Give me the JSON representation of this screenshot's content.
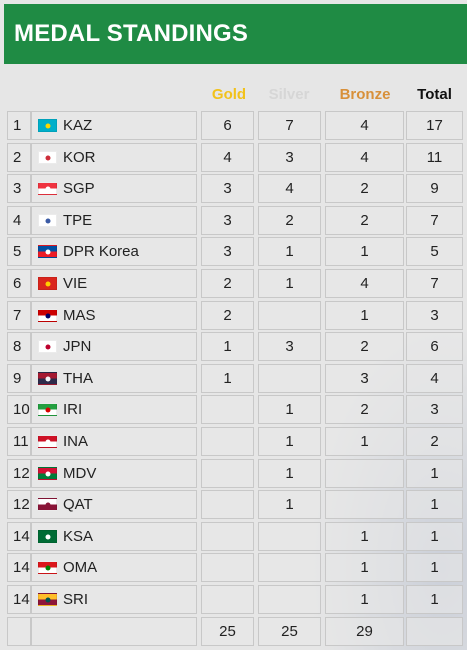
{
  "title": "MEDAL STANDINGS",
  "headers": {
    "gold": "Gold",
    "silver": "Silver",
    "bronze": "Bronze",
    "total": "Total"
  },
  "colors": {
    "header_bg": "#1f8b44",
    "gold": "#f2c21b",
    "silver": "#d6d6d6",
    "bronze": "#d8903a",
    "total": "#111111"
  },
  "rows": [
    {
      "rank": "1",
      "country": "KAZ",
      "gold": "6",
      "silver": "7",
      "bronze": "4",
      "total": "17",
      "flag": {
        "icon": "kazakhstan-flag-icon",
        "colors": [
          "#00afca",
          "#00afca",
          "#ffd700"
        ]
      }
    },
    {
      "rank": "2",
      "country": "KOR",
      "gold": "4",
      "silver": "3",
      "bronze": "4",
      "total": "11",
      "flag": {
        "icon": "south-korea-flag-icon",
        "colors": [
          "#ffffff",
          "#ffffff",
          "#cd2e3a"
        ]
      }
    },
    {
      "rank": "3",
      "country": "SGP",
      "gold": "3",
      "silver": "4",
      "bronze": "2",
      "total": "9",
      "flag": {
        "icon": "singapore-flag-icon",
        "colors": [
          "#ef3340",
          "#ffffff",
          "#ffffff"
        ]
      }
    },
    {
      "rank": "4",
      "country": "TPE",
      "gold": "3",
      "silver": "2",
      "bronze": "2",
      "total": "7",
      "flag": {
        "icon": "chinese-taipei-flag-icon",
        "colors": [
          "#ffffff",
          "#ffffff",
          "#3b5ba5"
        ]
      }
    },
    {
      "rank": "5",
      "country": "DPR Korea",
      "gold": "3",
      "silver": "1",
      "bronze": "1",
      "total": "5",
      "flag": {
        "icon": "north-korea-flag-icon",
        "colors": [
          "#024fa2",
          "#ed1c27",
          "#ffffff"
        ]
      }
    },
    {
      "rank": "6",
      "country": "VIE",
      "gold": "2",
      "silver": "1",
      "bronze": "4",
      "total": "7",
      "flag": {
        "icon": "vietnam-flag-icon",
        "colors": [
          "#da251d",
          "#da251d",
          "#ffcd00"
        ]
      }
    },
    {
      "rank": "7",
      "country": "MAS",
      "gold": "2",
      "silver": "",
      "bronze": "1",
      "total": "3",
      "flag": {
        "icon": "malaysia-flag-icon",
        "colors": [
          "#cc0001",
          "#ffffff",
          "#010066"
        ]
      }
    },
    {
      "rank": "8",
      "country": "JPN",
      "gold": "1",
      "silver": "3",
      "bronze": "2",
      "total": "6",
      "flag": {
        "icon": "japan-flag-icon",
        "colors": [
          "#ffffff",
          "#ffffff",
          "#bc002d"
        ]
      }
    },
    {
      "rank": "9",
      "country": "THA",
      "gold": "1",
      "silver": "",
      "bronze": "3",
      "total": "4",
      "flag": {
        "icon": "thailand-flag-icon",
        "colors": [
          "#a51931",
          "#2d2a4a",
          "#f4f5f8"
        ]
      }
    },
    {
      "rank": "10",
      "country": "IRI",
      "gold": "",
      "silver": "1",
      "bronze": "2",
      "total": "3",
      "flag": {
        "icon": "iran-flag-icon",
        "colors": [
          "#239f40",
          "#ffffff",
          "#da0000"
        ]
      }
    },
    {
      "rank": "11",
      "country": "INA",
      "gold": "",
      "silver": "1",
      "bronze": "1",
      "total": "2",
      "flag": {
        "icon": "indonesia-flag-icon",
        "colors": [
          "#ce1126",
          "#ffffff",
          "#ffffff"
        ]
      }
    },
    {
      "rank": "12",
      "country": "MDV",
      "gold": "",
      "silver": "1",
      "bronze": "",
      "total": "1",
      "flag": {
        "icon": "maldives-flag-icon",
        "colors": [
          "#d21034",
          "#007e3a",
          "#ffffff"
        ]
      }
    },
    {
      "rank": "12",
      "country": "QAT",
      "gold": "",
      "silver": "1",
      "bronze": "",
      "total": "1",
      "flag": {
        "icon": "qatar-flag-icon",
        "colors": [
          "#ffffff",
          "#8a1538",
          "#8a1538"
        ]
      }
    },
    {
      "rank": "14",
      "country": "KSA",
      "gold": "",
      "silver": "",
      "bronze": "1",
      "total": "1",
      "flag": {
        "icon": "saudi-arabia-flag-icon",
        "colors": [
          "#006c35",
          "#006c35",
          "#ffffff"
        ]
      }
    },
    {
      "rank": "14",
      "country": "OMA",
      "gold": "",
      "silver": "",
      "bronze": "1",
      "total": "1",
      "flag": {
        "icon": "oman-flag-icon",
        "colors": [
          "#db161b",
          "#ffffff",
          "#008000"
        ]
      }
    },
    {
      "rank": "14",
      "country": "SRI",
      "gold": "",
      "silver": "",
      "bronze": "1",
      "total": "1",
      "flag": {
        "icon": "sri-lanka-flag-icon",
        "colors": [
          "#ffbe29",
          "#8d153a",
          "#00534e"
        ]
      }
    }
  ],
  "totals": {
    "gold": "25",
    "silver": "25",
    "bronze": "29",
    "total": ""
  }
}
